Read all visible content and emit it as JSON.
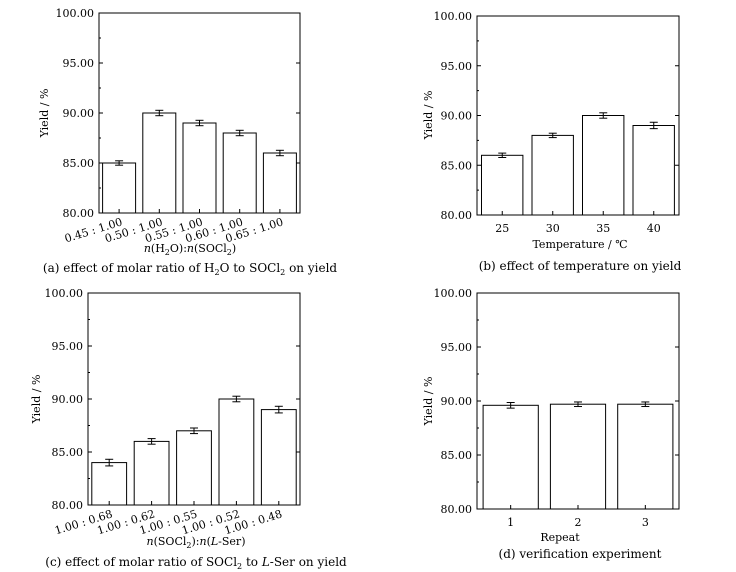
{
  "chart_data": [
    {
      "type": "bar",
      "categories": [
        "0.45 : 1.00",
        "0.50 : 1.00",
        "0.55 : 1.00",
        "0.60 : 1.00",
        "0.65 : 1.00"
      ],
      "values": [
        85.0,
        90.0,
        89.0,
        88.0,
        86.0
      ],
      "errors": [
        0.1,
        0.15,
        0.15,
        0.15,
        0.15
      ],
      "xlabel": "n(H2O):n(SOCl2)",
      "ylabel": "Yield / %",
      "ylim": [
        80.0,
        100.0
      ],
      "yticks": [
        "80.00",
        "85.00",
        "90.00",
        "95.00",
        "100.00"
      ],
      "caption": "(a) effect of molar ratio of H2O to SOCl2 on yield"
    },
    {
      "type": "bar",
      "categories": [
        "25",
        "30",
        "35",
        "40"
      ],
      "values": [
        86.0,
        88.0,
        90.0,
        89.0
      ],
      "errors": [
        0.1,
        0.1,
        0.15,
        0.2
      ],
      "xlabel": "Temperature / ℃",
      "ylabel": "Yield / %",
      "ylim": [
        80.0,
        100.0
      ],
      "yticks": [
        "80.00",
        "85.00",
        "90.00",
        "95.00",
        "100.00"
      ],
      "caption": "(b) effect of temperature on yield"
    },
    {
      "type": "bar",
      "categories": [
        "1.00 : 0.68",
        "1.00 : 0.62",
        "1.00 : 0.55",
        "1.00 : 0.52",
        "1.00 : 0.48"
      ],
      "values": [
        84.0,
        86.0,
        87.0,
        90.0,
        89.0
      ],
      "errors": [
        0.2,
        0.15,
        0.15,
        0.15,
        0.2
      ],
      "xlabel": "n(SOCl2):n(L-Ser)",
      "ylabel": "Yield / %",
      "ylim": [
        80.0,
        100.0
      ],
      "yticks": [
        "80.00",
        "85.00",
        "90.00",
        "95.00",
        "100.00"
      ],
      "caption": "(c) effect of molar ratio of SOCl2 to L-Ser on yield"
    },
    {
      "type": "bar",
      "categories": [
        "1",
        "2",
        "3"
      ],
      "values": [
        89.6,
        89.7,
        89.7
      ],
      "errors": [
        0.15,
        0.1,
        0.1
      ],
      "xlabel": "Repeat",
      "ylabel": "Yield / %",
      "ylim": [
        80.0,
        100.0
      ],
      "yticks": [
        "80.00",
        "85.00",
        "90.00",
        "95.00",
        "100.00"
      ],
      "caption": "(d) verification experiment"
    }
  ]
}
